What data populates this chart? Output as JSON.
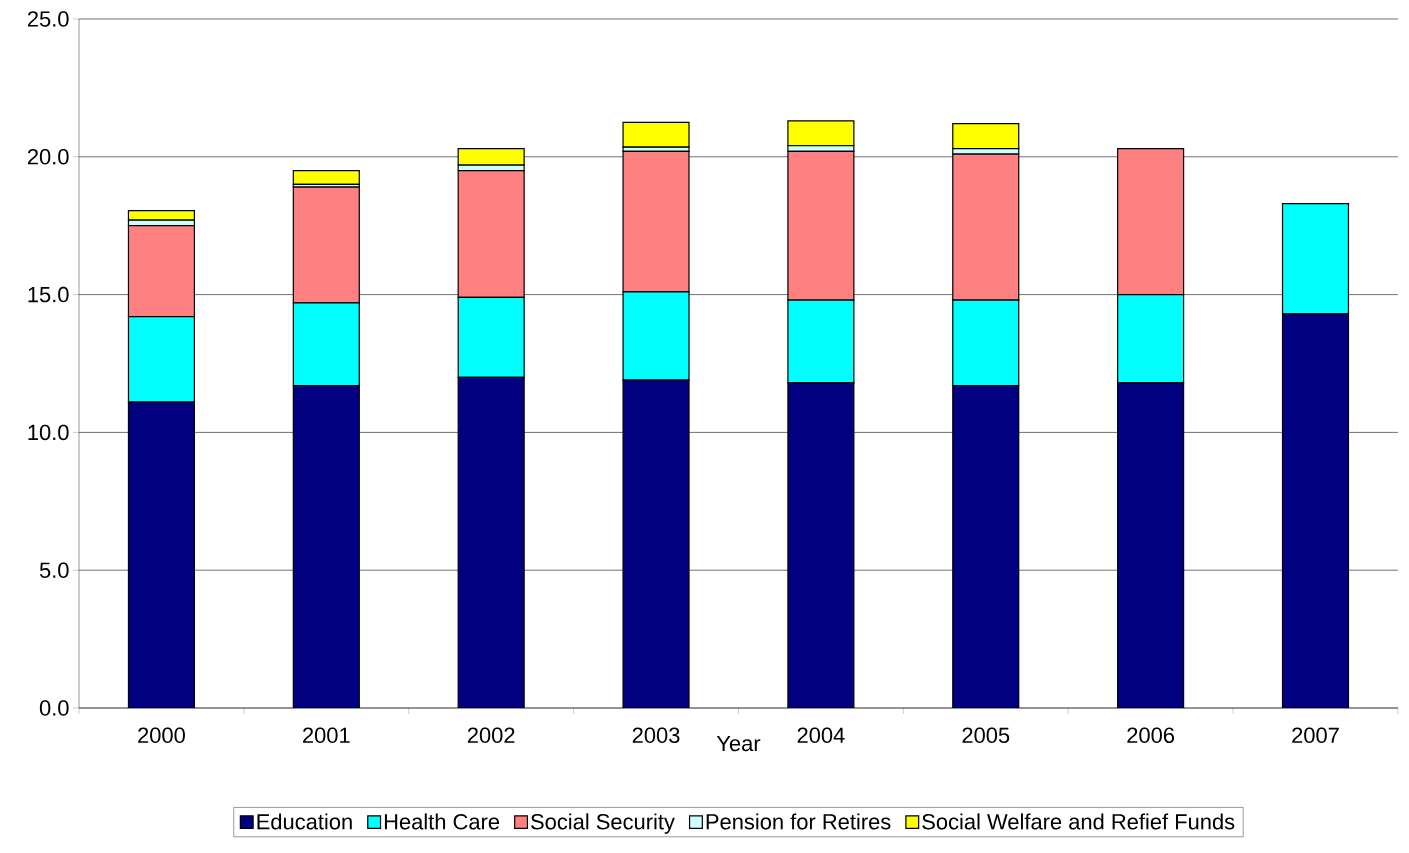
{
  "chart_data": {
    "type": "bar",
    "stacked": true,
    "xlabel": "Year",
    "categories": [
      "2000",
      "2001",
      "2002",
      "2003",
      "2004",
      "2005",
      "2006",
      "2007"
    ],
    "series": [
      {
        "name": "Education",
        "color": "#000080",
        "values": [
          11.1,
          11.7,
          12.0,
          11.9,
          11.8,
          11.7,
          11.8,
          14.3
        ]
      },
      {
        "name": "Health Care",
        "color": "#00ffff",
        "values": [
          3.1,
          3.0,
          2.9,
          3.2,
          3.0,
          3.1,
          3.2,
          4.0
        ]
      },
      {
        "name": "Social Security",
        "color": "#ff8080",
        "values": [
          3.3,
          4.2,
          4.6,
          5.1,
          5.4,
          5.3,
          5.3,
          null
        ]
      },
      {
        "name": "Pension for Retires",
        "color": "#ccffff",
        "values": [
          0.2,
          0.1,
          0.2,
          0.15,
          0.2,
          0.2,
          null,
          null
        ]
      },
      {
        "name": "Social Welfare and Refief Funds",
        "color": "#ffff00",
        "values": [
          0.35,
          0.5,
          0.6,
          0.9,
          0.9,
          0.9,
          null,
          null
        ]
      }
    ],
    "ylim": [
      0,
      25
    ],
    "yticks": [
      {
        "value": 0,
        "label": "0.0"
      },
      {
        "value": 5,
        "label": "5.0"
      },
      {
        "value": 10,
        "label": "10.0"
      },
      {
        "value": 15,
        "label": "15.0"
      },
      {
        "value": 20,
        "label": "20.0"
      },
      {
        "value": 25,
        "label": "25.0"
      }
    ],
    "grid": "y",
    "legend": "bottom"
  }
}
